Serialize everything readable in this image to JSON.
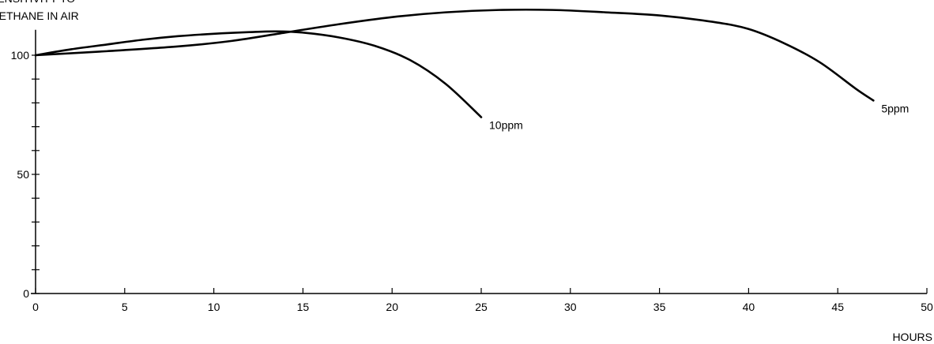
{
  "chart_data": {
    "type": "line",
    "title": "",
    "ylabel_lines": [
      "SENSITIVITY TO",
      "METHANE IN AIR"
    ],
    "xlabel": "HOURS",
    "xlim": [
      0,
      50
    ],
    "ylim": [
      0,
      110
    ],
    "x_ticks": [
      0,
      5,
      10,
      15,
      20,
      25,
      30,
      35,
      40,
      45,
      50
    ],
    "y_ticks": [
      0,
      50,
      100
    ],
    "y_minor_step": 10,
    "grid": false,
    "series": [
      {
        "name": "10ppm",
        "x": [
          0,
          2,
          4,
          6,
          8,
          10,
          12,
          13.5,
          15,
          17,
          19,
          21,
          23,
          25
        ],
        "y": [
          100,
          102.5,
          104.5,
          106.5,
          108,
          109,
          109.7,
          110,
          109.5,
          107.5,
          104,
          98,
          88,
          74
        ]
      },
      {
        "name": "5ppm",
        "x": [
          0,
          4,
          8,
          11,
          14,
          17,
          20,
          23,
          26,
          29,
          32,
          35,
          38,
          40,
          42,
          44,
          46,
          47
        ],
        "y": [
          100,
          101.7,
          103.7,
          106,
          109.5,
          113,
          116,
          118,
          119,
          119,
          118,
          116.7,
          114,
          111,
          105,
          97,
          86,
          81
        ]
      }
    ]
  }
}
